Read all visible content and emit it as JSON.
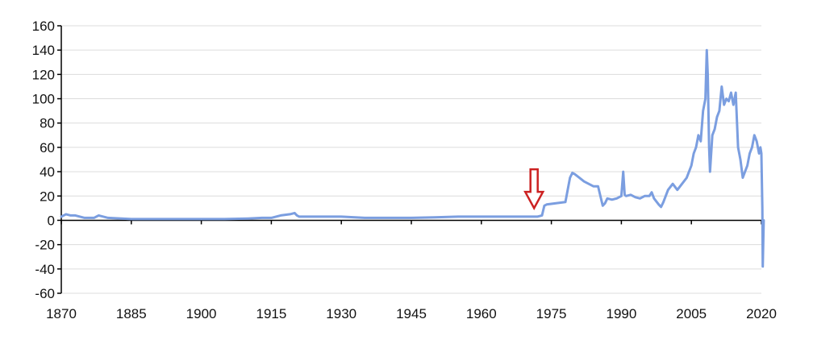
{
  "chart_data": {
    "type": "line",
    "title": "",
    "xlabel": "",
    "ylabel": "",
    "xlim": [
      1870,
      2020
    ],
    "ylim": [
      -60,
      160
    ],
    "x_ticks": [
      1870,
      1885,
      1900,
      1915,
      1930,
      1945,
      1960,
      1975,
      1990,
      2005,
      2020
    ],
    "x_tick_labels": [
      "1870",
      "1885",
      "1900",
      "1915",
      "1930",
      "1945",
      "1960",
      "1975",
      "1990",
      "2005",
      "2020"
    ],
    "y_ticks": [
      160,
      140,
      120,
      100,
      80,
      60,
      40,
      20,
      0,
      -20,
      -40,
      -60
    ],
    "y_tick_labels": [
      "160",
      "140",
      "120",
      "100",
      "80",
      "60",
      "40",
      "20",
      "0",
      "-20",
      "-40",
      "-60"
    ],
    "grid": "horizontal",
    "legend": "none",
    "series": [
      {
        "color": "#7b9ee0",
        "x": [
          1870,
          1871,
          1872,
          1873,
          1875,
          1877,
          1878,
          1880,
          1885,
          1890,
          1895,
          1900,
          1905,
          1910,
          1913,
          1915,
          1916,
          1917,
          1919,
          1920,
          1920.5,
          1921,
          1925,
          1929,
          1930,
          1935,
          1940,
          1945,
          1950,
          1955,
          1960,
          1965,
          1970,
          1972,
          1973,
          1973.5,
          1974,
          1976,
          1978,
          1979,
          1979.5,
          1980,
          1981,
          1982,
          1983,
          1984,
          1985,
          1985.5,
          1986,
          1986.5,
          1987,
          1988,
          1989,
          1990,
          1990.4,
          1990.7,
          1991,
          1992,
          1993,
          1994,
          1995,
          1996,
          1996.5,
          1997,
          1998,
          1998.5,
          1999,
          2000,
          2001,
          2002,
          2003,
          2004,
          2005,
          2005.5,
          2006,
          2006.5,
          2007,
          2007.5,
          2008,
          2008.3,
          2008.5,
          2008.8,
          2009,
          2009.5,
          2010,
          2010.5,
          2011,
          2011.5,
          2012,
          2012.5,
          2013,
          2013.5,
          2014,
          2014.5,
          2015,
          2015.5,
          2016,
          2016.5,
          2017,
          2017.5,
          2018,
          2018.5,
          2019,
          2019.5,
          2019.8,
          2020,
          2020.2,
          2020.3,
          2020.5
        ],
        "values": [
          3,
          5,
          4,
          4,
          2,
          2,
          4,
          2,
          1,
          1,
          1,
          1,
          1,
          1.5,
          2,
          2,
          3,
          4,
          5,
          6,
          4,
          3,
          3,
          3,
          3,
          2,
          2,
          2,
          2.5,
          3,
          3,
          3,
          3,
          3,
          4,
          12,
          13,
          14,
          15,
          35,
          39,
          38,
          35,
          32,
          30,
          28,
          28,
          20,
          12,
          14,
          18,
          17,
          18,
          20,
          40,
          21,
          20,
          21,
          19,
          18,
          20,
          20,
          23,
          18,
          13,
          11,
          15,
          25,
          30,
          25,
          30,
          35,
          45,
          55,
          60,
          70,
          65,
          90,
          100,
          140,
          120,
          60,
          40,
          70,
          75,
          85,
          90,
          110,
          95,
          100,
          98,
          105,
          95,
          105,
          60,
          50,
          35,
          40,
          45,
          55,
          60,
          70,
          65,
          55,
          60,
          55,
          10,
          -38,
          0
        ],
        "annotations": [
          {
            "type": "arrow-down",
            "x": 1971.3,
            "y_top": 42,
            "y_bottom": 10,
            "color": "#cc2222"
          }
        ]
      }
    ]
  }
}
